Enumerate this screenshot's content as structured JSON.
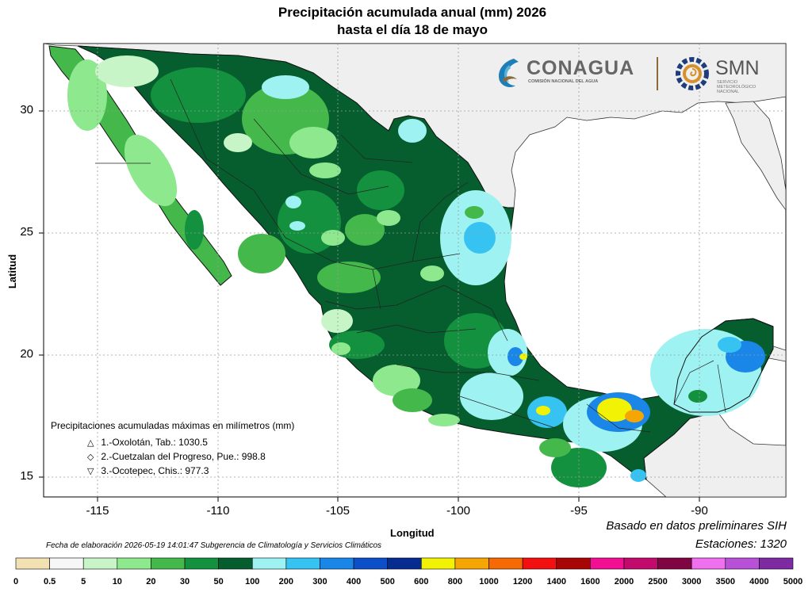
{
  "title": {
    "line1": "Precipitación acumulada anual (mm) 2026",
    "line2": "hasta el día 18 de mayo"
  },
  "axes": {
    "x_label": "Longitud",
    "y_label": "Latitud",
    "x_ticks": [
      "-115",
      "-110",
      "-105",
      "-100",
      "-95",
      "-90"
    ],
    "y_ticks": [
      "30",
      "25",
      "20",
      "15"
    ]
  },
  "logos": {
    "conagua": "CONAGUA",
    "conagua_sub": "COMISIÓN NACIONAL DEL AGUA",
    "smn": "SMN",
    "smn_sub": "SERVICIO METEOROLÓGICO NACIONAL"
  },
  "maxima": {
    "header": "Precipitaciones acumuladas máximas en milímetros (mm)",
    "items": [
      {
        "symbol": "△",
        "text": "1.-Oxolotán, Tab.: 1030.5"
      },
      {
        "symbol": "◇",
        "text": "2.-Cuetzalan del Progreso, Pue.: 998.8"
      },
      {
        "symbol": "▽",
        "text": "3.-Ocotepec, Chis.: 977.3"
      }
    ]
  },
  "notes": {
    "based_on": "Basado en datos preliminares SIH",
    "stations": "Estaciones:  1320",
    "creation": "Fecha de elaboración 2026-05-19 14:01:47 Subgerencia de Climatología y Servicios Climáticos"
  },
  "colorbar": {
    "labels": [
      "0",
      "0.5",
      "5",
      "10",
      "20",
      "30",
      "50",
      "100",
      "200",
      "300",
      "400",
      "500",
      "600",
      "800",
      "1000",
      "1200",
      "1400",
      "1600",
      "2000",
      "2500",
      "3000",
      "3500",
      "4000",
      "5000"
    ],
    "colors": [
      "#f2e2b3",
      "#f7f7f7",
      "#c7f5c7",
      "#8ee88e",
      "#44b84a",
      "#14913f",
      "#065e2e",
      "#9ef2f2",
      "#36c3f2",
      "#1a86e8",
      "#0d4fc9",
      "#062c8f",
      "#f2f205",
      "#f5a605",
      "#f56a05",
      "#f21010",
      "#a80505",
      "#f20f94",
      "#c20a6d",
      "#800543",
      "#f070f0",
      "#b850d8",
      "#7e2ba3"
    ]
  },
  "colors": {
    "ocean": "#ffffff",
    "land_other": "#efefef",
    "border": "#111111",
    "grid": "#9a9a9a"
  }
}
